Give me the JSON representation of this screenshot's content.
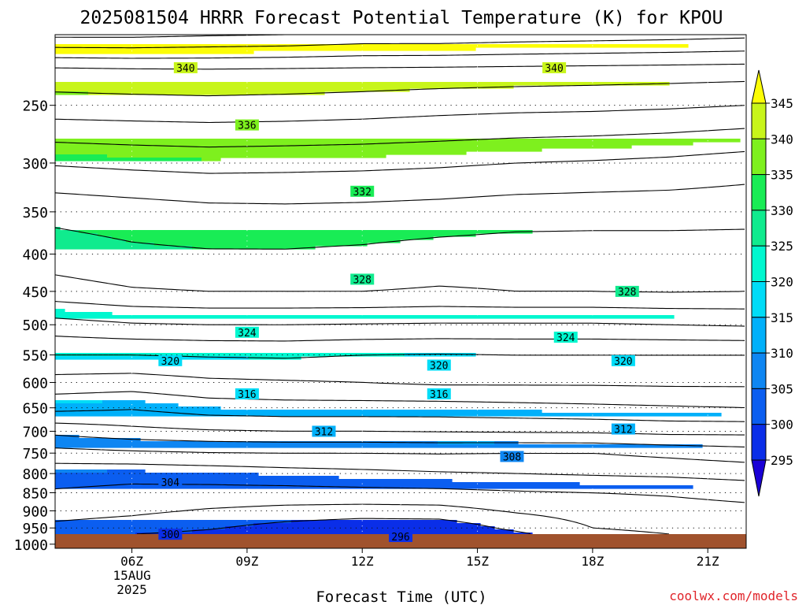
{
  "chart_data": {
    "type": "heatmap",
    "title": "2025081504 HRRR Forecast Potential Temperature (K) for KPOU",
    "xlabel": "Forecast Time (UTC)",
    "ylabel": "",
    "credit": "coolwx.com/models",
    "x_ticks": [
      {
        "hour": 6,
        "label": "06Z",
        "sub": [
          "15AUG",
          "2025"
        ]
      },
      {
        "hour": 9,
        "label": "09Z",
        "sub": []
      },
      {
        "hour": 12,
        "label": "12Z",
        "sub": []
      },
      {
        "hour": 15,
        "label": "15Z",
        "sub": []
      },
      {
        "hour": 18,
        "label": "18Z",
        "sub": []
      },
      {
        "hour": 21,
        "label": "21Z",
        "sub": []
      }
    ],
    "xlim": [
      4,
      22
    ],
    "y_scale": "log-pressure",
    "y_unit": "hPa",
    "y_ticks": [
      250,
      300,
      350,
      400,
      450,
      500,
      550,
      600,
      650,
      700,
      750,
      800,
      850,
      900,
      950,
      1000
    ],
    "ylim": [
      1013,
      200
    ],
    "colorbar": {
      "labels": [
        345,
        340,
        335,
        330,
        325,
        320,
        315,
        310,
        305,
        300,
        295
      ],
      "extend": "both"
    },
    "levels": [
      295,
      300,
      305,
      310,
      315,
      320,
      325,
      330,
      335,
      340,
      345
    ],
    "colors": [
      "#1a00d6",
      "#0a2ee8",
      "#0b5ef0",
      "#0e86f2",
      "#00b0fa",
      "#00dcf7",
      "#00f7cf",
      "#10eb8e",
      "#19ec55",
      "#7ef01e",
      "#c8f51a",
      "#fcfd06"
    ],
    "ground_color": "#a0522d",
    "x": [
      4,
      6,
      8,
      10,
      12,
      14,
      16,
      18,
      20,
      22
    ],
    "profiles": [
      {
        "p": 1013,
        "theta": [
          297.5,
          297.4,
          297.3,
          297.1,
          296.9,
          296.8,
          297.0,
          301.0,
          301.5,
          302.0
        ]
      },
      {
        "p": 1000,
        "theta": [
          298.6,
          298.4,
          298.2,
          297.5,
          297.2,
          297.2,
          298.0,
          301.0,
          301.5,
          302.0
        ]
      },
      {
        "p": 950,
        "theta": [
          301.5,
          301.0,
          300.2,
          299.2,
          298.5,
          298.6,
          300.5,
          302.0,
          302.3,
          302.6
        ]
      },
      {
        "p": 900,
        "theta": [
          302.8,
          302.4,
          301.8,
          301.4,
          301.2,
          301.3,
          302.2,
          302.8,
          303.2,
          303.5
        ]
      },
      {
        "p": 850,
        "theta": [
          303.8,
          303.5,
          303.4,
          303.3,
          303.4,
          303.5,
          303.8,
          304.0,
          304.2,
          304.6
        ]
      },
      {
        "p": 800,
        "theta": [
          304.8,
          304.6,
          304.8,
          305.2,
          305.5,
          305.8,
          306.0,
          306.2,
          306.4,
          306.8
        ]
      },
      {
        "p": 750,
        "theta": [
          307.2,
          307.6,
          307.9,
          308.0,
          308.0,
          308.1,
          308.0,
          308.0,
          308.5,
          309.0
        ]
      },
      {
        "p": 700,
        "theta": [
          310.6,
          311.4,
          311.8,
          312.0,
          312.0,
          312.1,
          312.2,
          312.3,
          312.6,
          312.6
        ]
      },
      {
        "p": 650,
        "theta": [
          314.6,
          314.2,
          315.0,
          315.2,
          315.2,
          315.2,
          315.4,
          315.6,
          315.8,
          316.0
        ]
      },
      {
        "p": 600,
        "theta": [
          317.2,
          317.0,
          317.6,
          317.8,
          318.0,
          318.3,
          318.3,
          318.3,
          318.4,
          318.4
        ]
      },
      {
        "p": 550,
        "theta": [
          320.0,
          320.0,
          320.2,
          320.3,
          320.0,
          319.9,
          320.0,
          320.0,
          320.0,
          320.0
        ]
      },
      {
        "p": 500,
        "theta": [
          323.2,
          323.8,
          324.0,
          324.0,
          323.9,
          323.8,
          323.8,
          323.8,
          324.0,
          324.2
        ]
      },
      {
        "p": 450,
        "theta": [
          327.2,
          327.8,
          328.0,
          328.0,
          328.0,
          327.8,
          328.0,
          328.0,
          328.1,
          328.0
        ]
      },
      {
        "p": 400,
        "theta": [
          329.0,
          329.6,
          329.8,
          329.8,
          329.6,
          329.2,
          329.0,
          329.0,
          329.0,
          329.0
        ]
      },
      {
        "p": 350,
        "theta": [
          330.6,
          331.0,
          331.4,
          331.5,
          331.4,
          331.2,
          330.9,
          330.8,
          330.8,
          330.7
        ]
      },
      {
        "p": 300,
        "theta": [
          334.2,
          334.5,
          334.7,
          334.6,
          334.5,
          334.3,
          334.0,
          333.8,
          333.5,
          333.0
        ]
      },
      {
        "p": 250,
        "theta": [
          339.2,
          339.3,
          339.4,
          339.3,
          339.1,
          338.8,
          338.6,
          338.5,
          338.3,
          338.0
        ]
      },
      {
        "p": 225,
        "theta": [
          341.2,
          341.4,
          341.5,
          341.4,
          341.3,
          341.2,
          341.1,
          341.0,
          340.9,
          340.8
        ]
      },
      {
        "p": 200,
        "theta": [
          348.5,
          348.5,
          348.2,
          348.0,
          347.5,
          347.5,
          347.2,
          347.0,
          346.8,
          346.5
        ]
      }
    ],
    "contour_labels": [
      {
        "value": "340",
        "x": 7.4,
        "p": 222
      },
      {
        "value": "340",
        "x": 17.0,
        "p": 222
      },
      {
        "value": "336",
        "x": 9.0,
        "p": 266
      },
      {
        "value": "332",
        "x": 12.0,
        "p": 328
      },
      {
        "value": "328",
        "x": 12.0,
        "p": 433
      },
      {
        "value": "328",
        "x": 18.9,
        "p": 450
      },
      {
        "value": "324",
        "x": 9.0,
        "p": 512
      },
      {
        "value": "324",
        "x": 17.3,
        "p": 520
      },
      {
        "value": "320",
        "x": 7.0,
        "p": 560
      },
      {
        "value": "320",
        "x": 14.0,
        "p": 568
      },
      {
        "value": "320",
        "x": 18.8,
        "p": 560
      },
      {
        "value": "316",
        "x": 9.0,
        "p": 622
      },
      {
        "value": "316",
        "x": 14.0,
        "p": 622
      },
      {
        "value": "312",
        "x": 11.0,
        "p": 700
      },
      {
        "value": "312",
        "x": 18.8,
        "p": 695
      },
      {
        "value": "308",
        "x": 15.9,
        "p": 758
      },
      {
        "value": "304",
        "x": 7.0,
        "p": 822
      },
      {
        "value": "300",
        "x": 7.0,
        "p": 969
      },
      {
        "value": "296",
        "x": 13.0,
        "p": 976
      }
    ]
  }
}
